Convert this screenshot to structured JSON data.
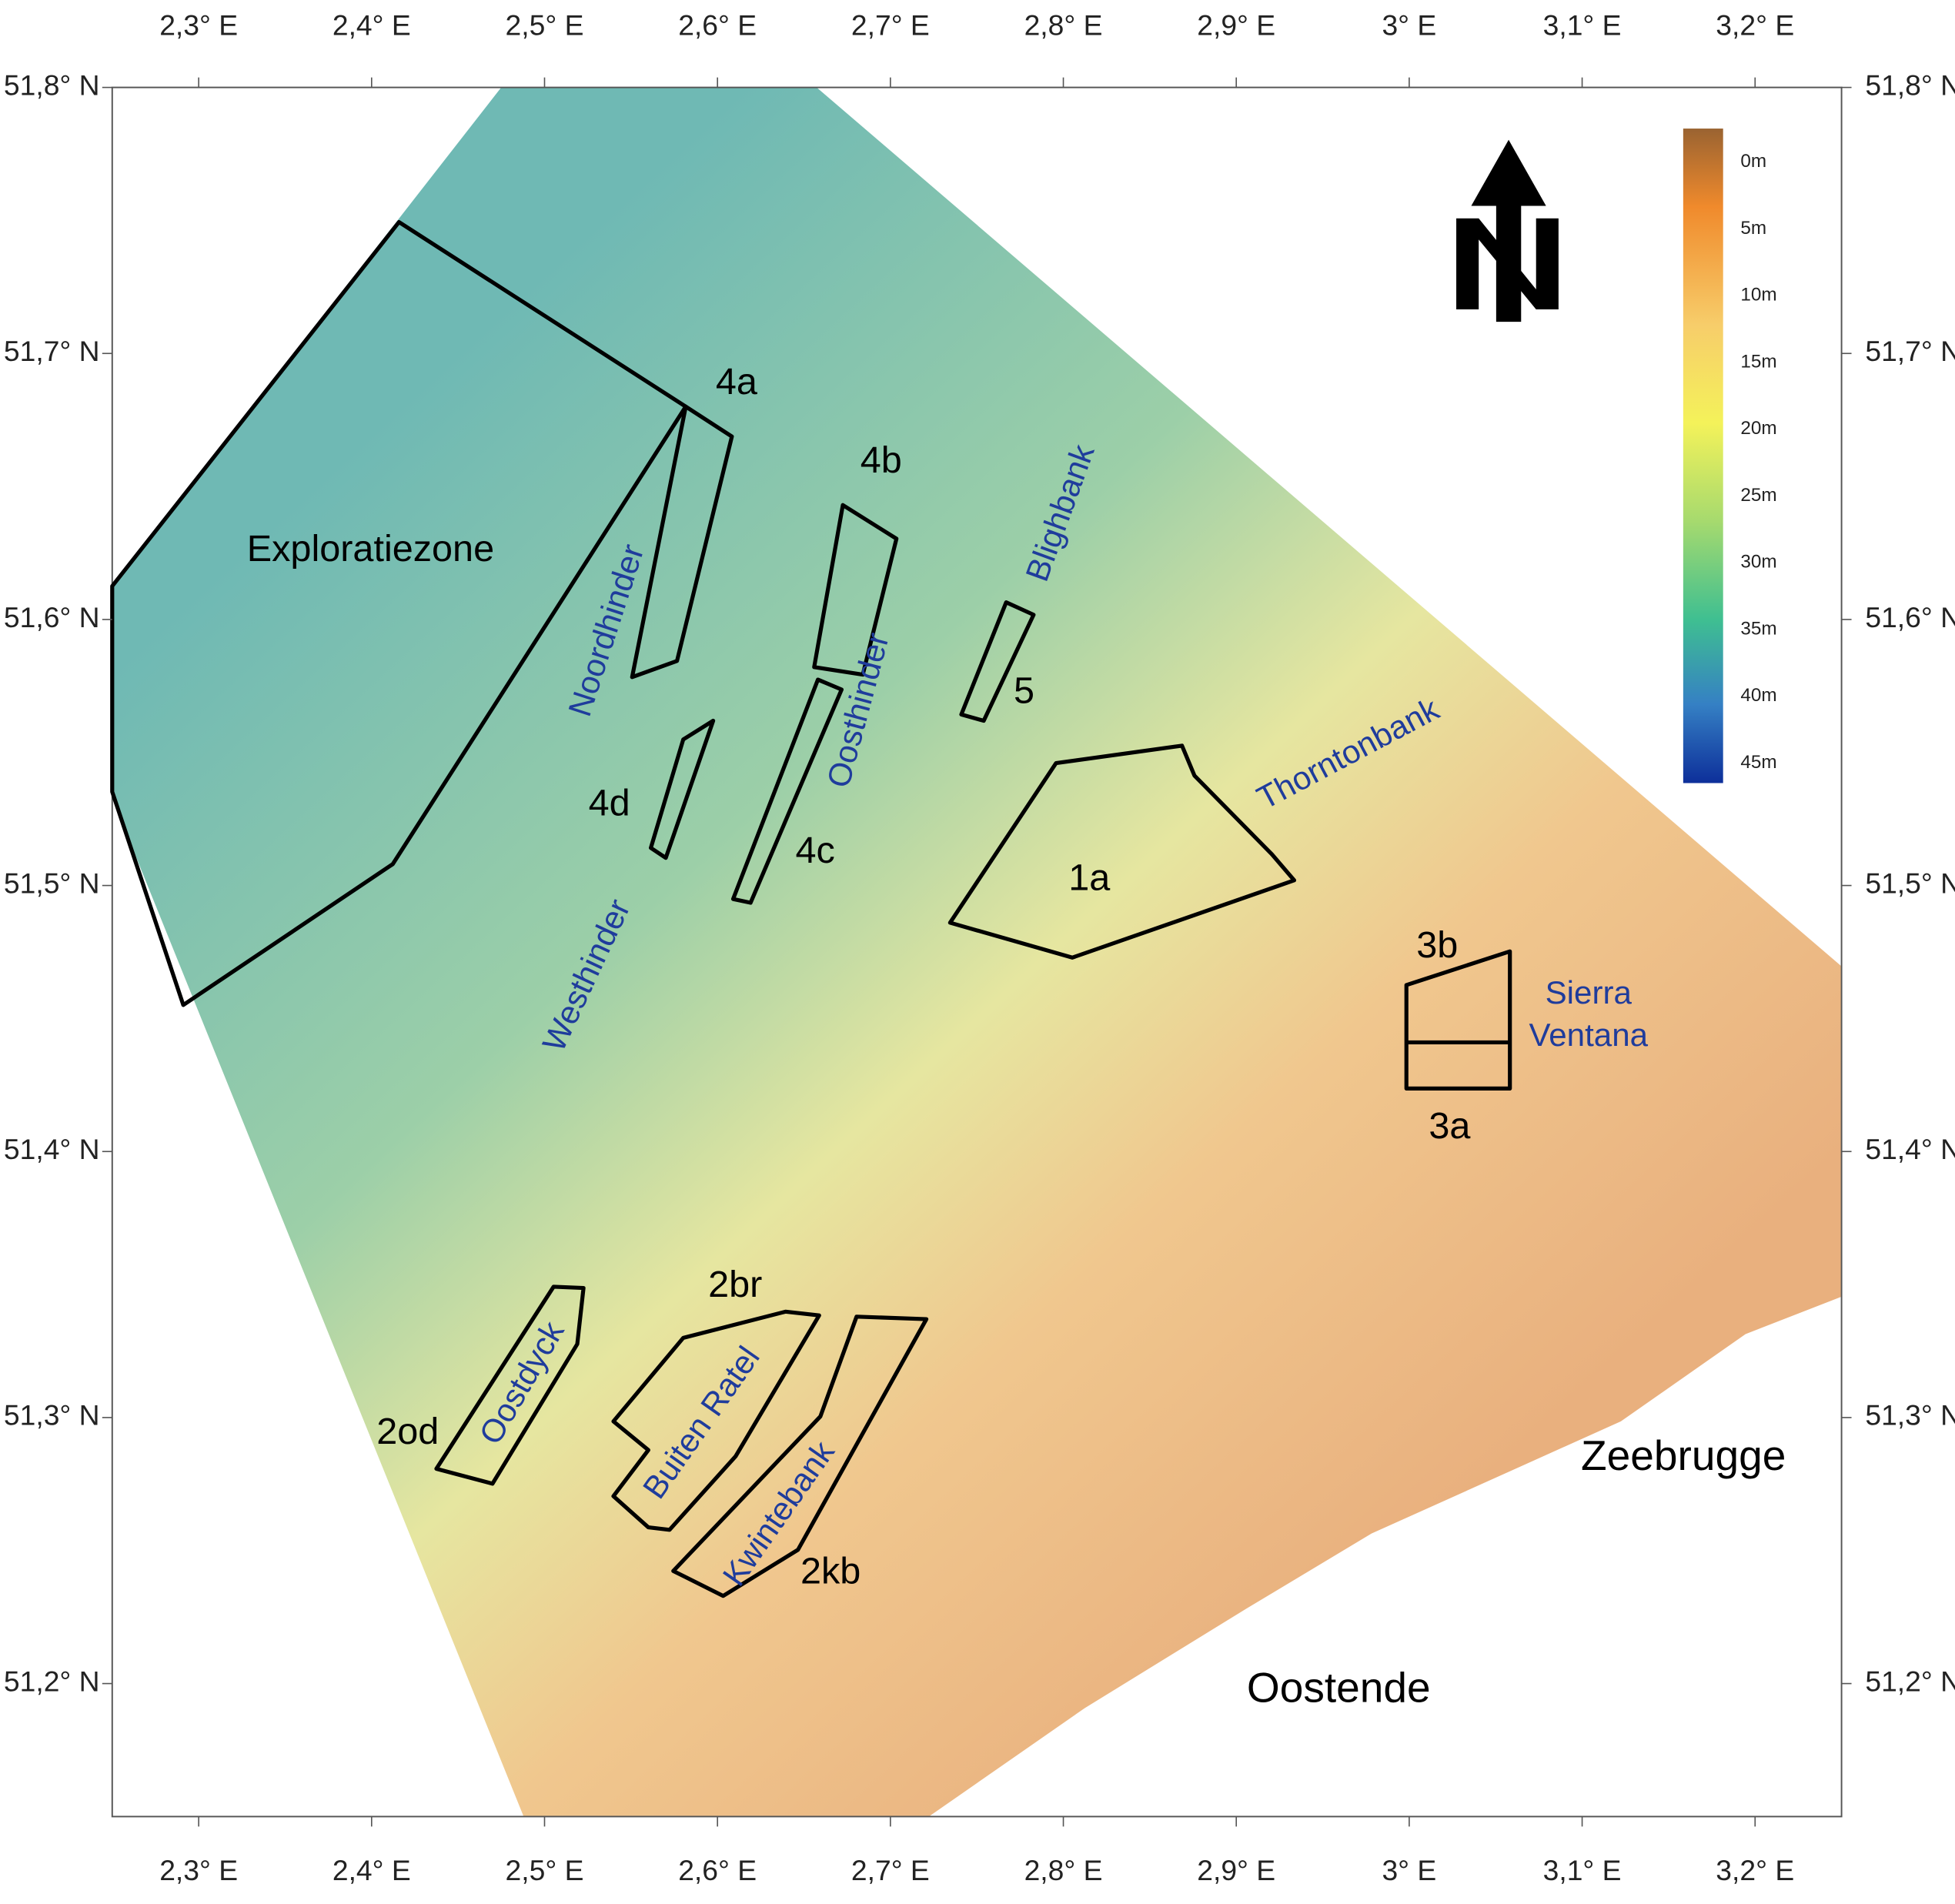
{
  "axes": {
    "xlim": [
      2.25,
      3.25
    ],
    "ylim": [
      51.15,
      51.8
    ],
    "xticks": [
      {
        "value": 2.3,
        "label": "2,3° E"
      },
      {
        "value": 2.4,
        "label": "2,4° E"
      },
      {
        "value": 2.5,
        "label": "2,5° E"
      },
      {
        "value": 2.6,
        "label": "2,6° E"
      },
      {
        "value": 2.7,
        "label": "2,7° E"
      },
      {
        "value": 2.8,
        "label": "2,8° E"
      },
      {
        "value": 2.9,
        "label": "2,9° E"
      },
      {
        "value": 3.0,
        "label": "3° E"
      },
      {
        "value": 3.1,
        "label": "3,1° E"
      },
      {
        "value": 3.2,
        "label": "3,2° E"
      }
    ],
    "yticks": [
      {
        "value": 51.2,
        "label": "51,2° N"
      },
      {
        "value": 51.3,
        "label": "51,3° N"
      },
      {
        "value": 51.4,
        "label": "51,4° N"
      },
      {
        "value": 51.5,
        "label": "51,5° N"
      },
      {
        "value": 51.6,
        "label": "51,6° N"
      },
      {
        "value": 51.7,
        "label": "51,7° N"
      },
      {
        "value": 51.8,
        "label": "51,8° N"
      }
    ]
  },
  "zones": [
    "Exploratiezone",
    "4a",
    "4b",
    "4c",
    "4d",
    "5",
    "1a",
    "3a",
    "3b",
    "2od",
    "2br",
    "2kb"
  ],
  "sandbanks": [
    "Noordhinder",
    "Oosthinder",
    "Blighbank",
    "Thorntonbank",
    "Westhinder",
    "Oostdyck",
    "Buiten Ratel",
    "Kwintebank"
  ],
  "sierra_ventana": [
    "Sierra",
    "Ventana"
  ],
  "places": [
    "Zeebrugge",
    "Oostende"
  ],
  "legend": {
    "labels": [
      "0m",
      "5m",
      "10m",
      "15m",
      "20m",
      "25m",
      "30m",
      "35m",
      "40m",
      "45m"
    ]
  }
}
